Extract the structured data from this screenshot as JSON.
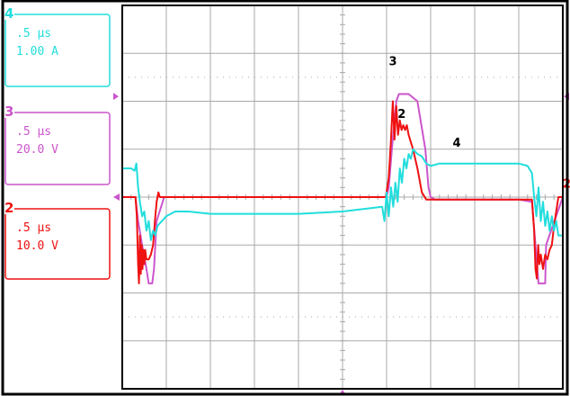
{
  "colors": {
    "frame": "#000000",
    "grid": "#a9a9a9",
    "ch2": "#ee1111",
    "ch3": "#cc55cc",
    "ch4": "#22dddd"
  },
  "channels": [
    {
      "number": "4",
      "time": ".5 µs",
      "scale": "1.00 A",
      "color": "#22dddd"
    },
    {
      "number": "3",
      "time": ".5 µs",
      "scale": "20.0 V",
      "color": "#cc55cc"
    },
    {
      "number": "2",
      "time": ".5 µs",
      "scale": "10.0 V",
      "color": "#ee1111"
    }
  ],
  "trace_labels": [
    {
      "text": "3",
      "series": "ch3"
    },
    {
      "text": "2",
      "series": "ch2"
    },
    {
      "text": "4",
      "series": "ch4"
    }
  ],
  "right_marker_label": "2",
  "chart_data": {
    "type": "line",
    "grid": true,
    "x_divisions": 10,
    "y_divisions": 8,
    "xlim": [
      0,
      10
    ],
    "ylim": [
      0,
      8
    ],
    "series": [
      {
        "id": "ch3",
        "color": "#cc55cc",
        "x": [
          0,
          0.3,
          0.36,
          0.45,
          0.55,
          0.6,
          0.68,
          0.72,
          0.78,
          0.95,
          3.0,
          6.0,
          6.05,
          6.12,
          6.22,
          6.28,
          6.5,
          6.7,
          6.88,
          6.95,
          7.0,
          7.1,
          7.4,
          9.0,
          9.3,
          9.38,
          9.45,
          9.55,
          9.6,
          9.62,
          10.0
        ],
        "y": [
          4.0,
          4.0,
          3.5,
          3.0,
          2.5,
          2.2,
          2.2,
          2.5,
          3.5,
          4.0,
          4.0,
          4.0,
          4.2,
          5.0,
          6.0,
          6.15,
          6.15,
          6.0,
          5.0,
          4.2,
          4.0,
          3.95,
          3.95,
          3.95,
          3.9,
          3.0,
          2.2,
          2.2,
          2.2,
          3.0,
          4.0
        ]
      },
      {
        "id": "ch2",
        "color": "#ee1111",
        "x": [
          0,
          0.3,
          0.33,
          0.36,
          0.38,
          0.4,
          0.42,
          0.44,
          0.46,
          0.48,
          0.5,
          0.52,
          0.55,
          0.6,
          0.65,
          0.7,
          0.74,
          0.78,
          0.82,
          0.85,
          0.9,
          1.0,
          3.0,
          5.98,
          6.05,
          6.1,
          6.14,
          6.18,
          6.22,
          6.26,
          6.3,
          6.34,
          6.38,
          6.42,
          6.46,
          6.5,
          6.6,
          6.7,
          6.8,
          6.9,
          7.0,
          9.0,
          9.3,
          9.35,
          9.38,
          9.41,
          9.44,
          9.47,
          9.5,
          9.55,
          9.6,
          9.65,
          9.7,
          9.75,
          9.8,
          9.9,
          10.0
        ],
        "y": [
          4.0,
          4.0,
          3.6,
          2.6,
          2.2,
          3.2,
          2.4,
          3.0,
          2.5,
          2.9,
          2.6,
          2.9,
          2.7,
          2.7,
          2.8,
          3.0,
          3.5,
          3.9,
          4.1,
          4.0,
          4.0,
          4.0,
          4.0,
          4.0,
          4.4,
          5.2,
          6.0,
          5.2,
          5.9,
          5.3,
          5.6,
          5.4,
          5.5,
          5.4,
          5.5,
          5.3,
          5.0,
          4.6,
          4.1,
          3.95,
          3.95,
          3.95,
          3.95,
          3.3,
          2.5,
          2.3,
          3.0,
          2.6,
          2.8,
          2.5,
          2.8,
          2.7,
          2.9,
          3.0,
          3.4,
          4.0,
          4.0
        ]
      },
      {
        "id": "ch4",
        "color": "#22dddd",
        "x": [
          0,
          0.2,
          0.28,
          0.32,
          0.36,
          0.4,
          0.45,
          0.5,
          0.55,
          0.6,
          0.65,
          0.7,
          0.75,
          0.8,
          0.9,
          1.0,
          1.2,
          1.5,
          2.0,
          3.0,
          4.0,
          5.0,
          5.9,
          5.95,
          6.0,
          6.05,
          6.1,
          6.15,
          6.2,
          6.25,
          6.3,
          6.35,
          6.4,
          6.45,
          6.5,
          6.55,
          6.6,
          6.7,
          6.8,
          6.9,
          7.0,
          7.2,
          7.5,
          8.0,
          9.0,
          9.2,
          9.3,
          9.35,
          9.4,
          9.45,
          9.5,
          9.55,
          9.6,
          9.65,
          9.7,
          9.75,
          9.8,
          9.85,
          9.9,
          10.0
        ],
        "y": [
          4.6,
          4.6,
          4.55,
          4.7,
          4.2,
          3.9,
          3.6,
          3.7,
          3.3,
          3.5,
          3.1,
          3.3,
          3.2,
          3.4,
          3.5,
          3.6,
          3.7,
          3.7,
          3.65,
          3.65,
          3.65,
          3.7,
          3.8,
          3.5,
          4.1,
          3.6,
          4.2,
          3.8,
          4.3,
          3.9,
          4.6,
          4.3,
          4.8,
          4.6,
          4.9,
          4.8,
          5.0,
          4.9,
          4.85,
          4.7,
          4.65,
          4.7,
          4.7,
          4.7,
          4.7,
          4.65,
          4.5,
          4.0,
          3.6,
          4.2,
          3.5,
          3.9,
          3.4,
          3.7,
          3.3,
          3.6,
          3.3,
          3.5,
          3.2,
          3.2
        ]
      }
    ]
  }
}
